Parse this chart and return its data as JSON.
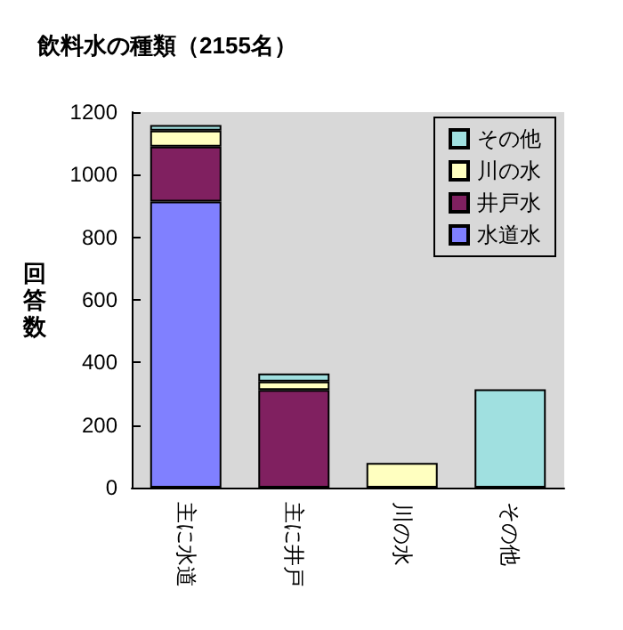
{
  "chart_data": {
    "type": "bar",
    "title": "飲料水の種類（2155名）",
    "ylabel": "回答数",
    "categories": [
      "主に水道",
      "主に井戸",
      "川の水",
      "その他"
    ],
    "stacked": true,
    "series": [
      {
        "name": "水道水",
        "color": "#8080ff",
        "values": [
          914,
          null,
          null,
          null
        ]
      },
      {
        "name": "井戸水",
        "color": "#802060",
        "values": [
          176,
          312,
          null,
          null
        ]
      },
      {
        "name": "川の水",
        "color": "#ffffc0",
        "values": [
          51,
          27,
          79,
          null
        ]
      },
      {
        "name": "その他",
        "color": "#a0e0e0",
        "values": [
          18,
          26,
          null,
          314
        ]
      }
    ],
    "ylim": [
      0,
      1200
    ],
    "yticks": [
      0,
      200,
      400,
      600,
      800,
      1000,
      1200
    ],
    "grid": false,
    "legend": "top right"
  }
}
